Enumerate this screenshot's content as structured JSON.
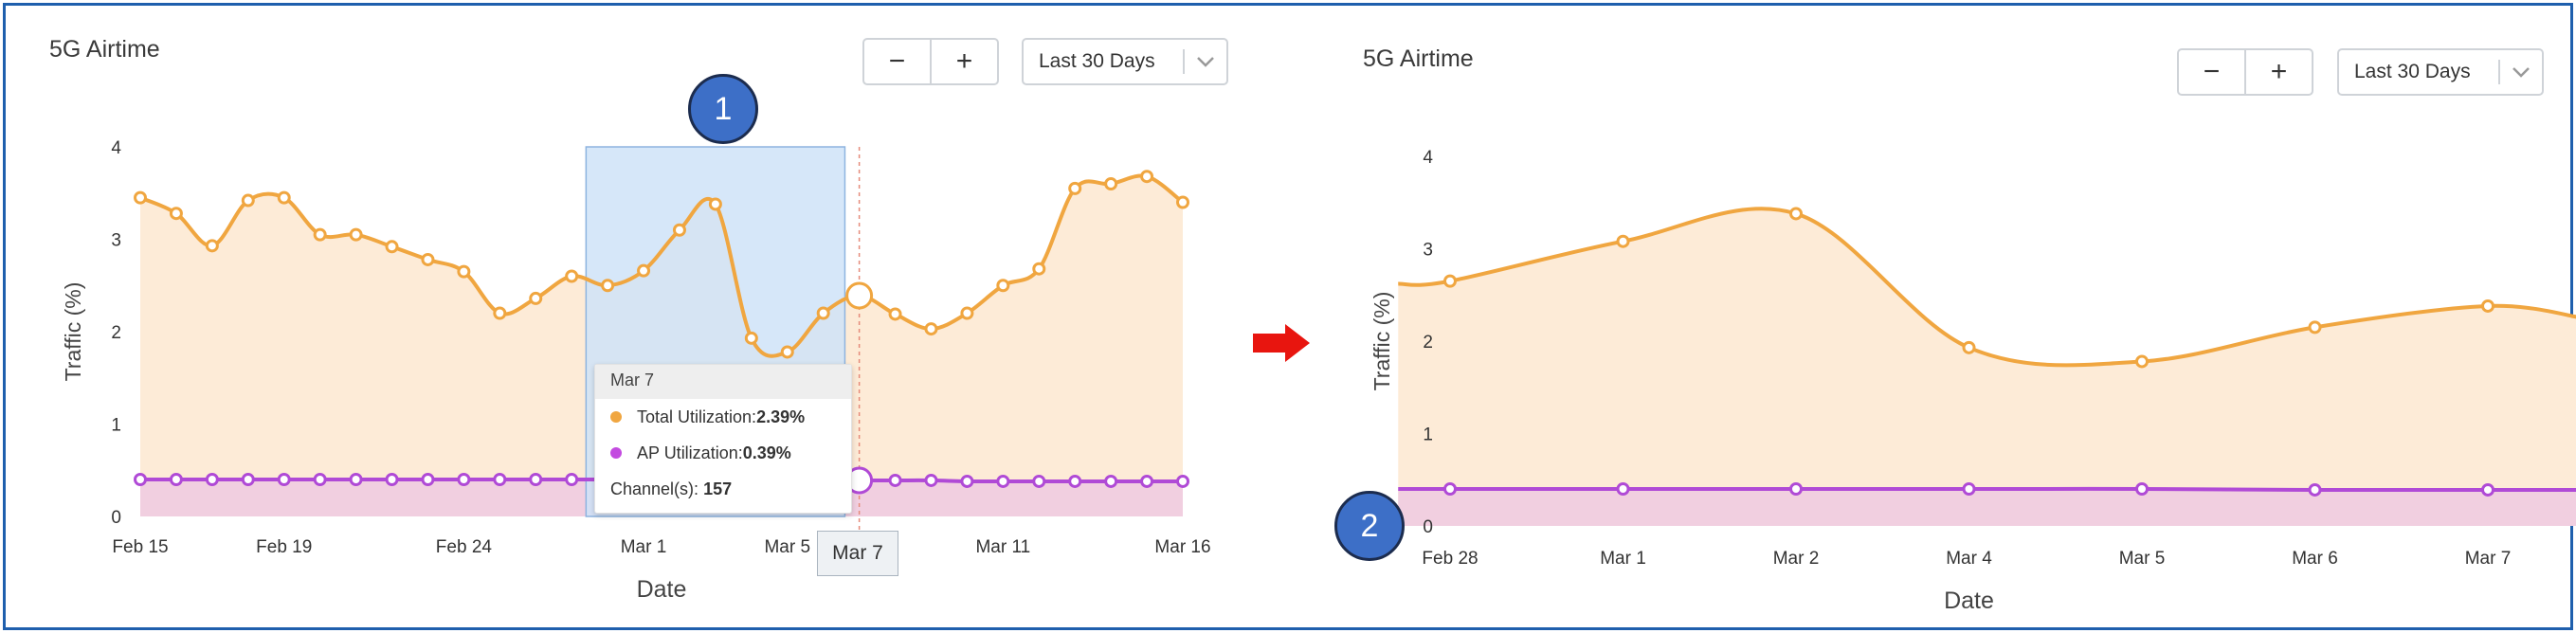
{
  "left_panel": {
    "title": "5G Airtime",
    "zoom_out_label": "−",
    "zoom_in_label": "+",
    "range_label": "Last 30 Days",
    "tooltip": {
      "date": "Mar 7",
      "total_label": "Total Utilization:",
      "total_value": "2.39%",
      "ap_label": "AP Utilization:",
      "ap_value": "0.39%",
      "channels_label": "Channel(s):",
      "channels_value": "157"
    },
    "hover_date_label": "Mar 7",
    "step_badge": "1"
  },
  "right_panel": {
    "title": "5G Airtime",
    "zoom_out_label": "−",
    "zoom_in_label": "+",
    "range_label": "Last 30 Days",
    "step_badge": "2"
  },
  "colors": {
    "total_line": "#f0a640",
    "total_fill": "#fdebd7",
    "ap_line": "#b04ad6",
    "ap_fill": "#f1cfe0",
    "selection_fill": "#cfe3f8",
    "selection_stroke": "#8db3df",
    "arrow": "#e8150f",
    "frame": "#1f5fad",
    "badge": "#3d6fc7"
  },
  "chart_data": [
    {
      "type": "area",
      "title": "5G Airtime",
      "xlabel": "Date",
      "ylabel": "Traffic (%)",
      "ylim": [
        0,
        4
      ],
      "yticks": [
        "0",
        "1",
        "2",
        "3",
        "4"
      ],
      "xticks": [
        "Feb 15",
        "Feb 19",
        "Feb 24",
        "Mar 1",
        "Mar 5",
        "Mar 11",
        "Mar 16"
      ],
      "x": [
        "Feb 15",
        "Feb 16",
        "Feb 17",
        "Feb 18",
        "Feb 19",
        "Feb 20",
        "Feb 21",
        "Feb 22",
        "Feb 23",
        "Feb 24",
        "Feb 25",
        "Feb 26",
        "Feb 27",
        "Feb 28",
        "Mar 1",
        "Mar 2",
        "Mar 3",
        "Mar 4",
        "Mar 5",
        "Mar 6",
        "Mar 7",
        "Mar 8",
        "Mar 9",
        "Mar 10",
        "Mar 11",
        "Mar 12",
        "Mar 13",
        "Mar 14",
        "Mar 15",
        "Mar 16"
      ],
      "series": [
        {
          "name": "Total Utilization",
          "values": [
            3.45,
            3.28,
            2.93,
            3.42,
            3.45,
            3.05,
            3.05,
            2.92,
            2.78,
            2.65,
            2.2,
            2.36,
            2.6,
            2.5,
            2.66,
            3.1,
            3.38,
            1.93,
            1.78,
            2.2,
            2.39,
            2.19,
            2.03,
            2.2,
            2.5,
            2.68,
            3.55,
            3.6,
            3.68,
            3.4
          ]
        },
        {
          "name": "AP Utilization",
          "values": [
            0.4,
            0.4,
            0.4,
            0.4,
            0.4,
            0.4,
            0.4,
            0.4,
            0.4,
            0.4,
            0.4,
            0.4,
            0.4,
            0.4,
            0.4,
            0.4,
            0.4,
            0.4,
            0.4,
            0.4,
            0.39,
            0.39,
            0.39,
            0.38,
            0.38,
            0.38,
            0.38,
            0.38,
            0.38,
            0.38
          ]
        }
      ],
      "selection": {
        "from": "Feb 28",
        "to": "Mar 6"
      },
      "hover": "Mar 7",
      "grid": false,
      "legend": "tooltip"
    },
    {
      "type": "area",
      "title": "5G Airtime",
      "xlabel": "Date",
      "ylabel": "Traffic (%)",
      "ylim": [
        0,
        4
      ],
      "yticks": [
        "0",
        "1",
        "2",
        "3",
        "4"
      ],
      "xticks": [
        "Feb 28",
        "Mar 1",
        "Mar 2",
        "Mar 4",
        "Mar 5",
        "Mar 6",
        "Mar 7"
      ],
      "series": [
        {
          "name": "Total Utilization",
          "points": [
            [
              -0.3,
              2.62
            ],
            [
              0,
              2.65
            ],
            [
              1,
              3.08
            ],
            [
              2,
              3.38
            ],
            [
              3,
              1.93
            ],
            [
              4,
              1.78
            ],
            [
              5,
              2.15
            ],
            [
              6,
              2.38
            ],
            [
              6.55,
              2.25
            ]
          ]
        },
        {
          "name": "AP Utilization",
          "points": [
            [
              -0.3,
              0.4
            ],
            [
              0,
              0.4
            ],
            [
              1,
              0.4
            ],
            [
              2,
              0.4
            ],
            [
              3,
              0.4
            ],
            [
              4,
              0.4
            ],
            [
              5,
              0.39
            ],
            [
              6,
              0.39
            ],
            [
              6.55,
              0.39
            ]
          ]
        }
      ],
      "grid": false,
      "legend": "none"
    }
  ]
}
